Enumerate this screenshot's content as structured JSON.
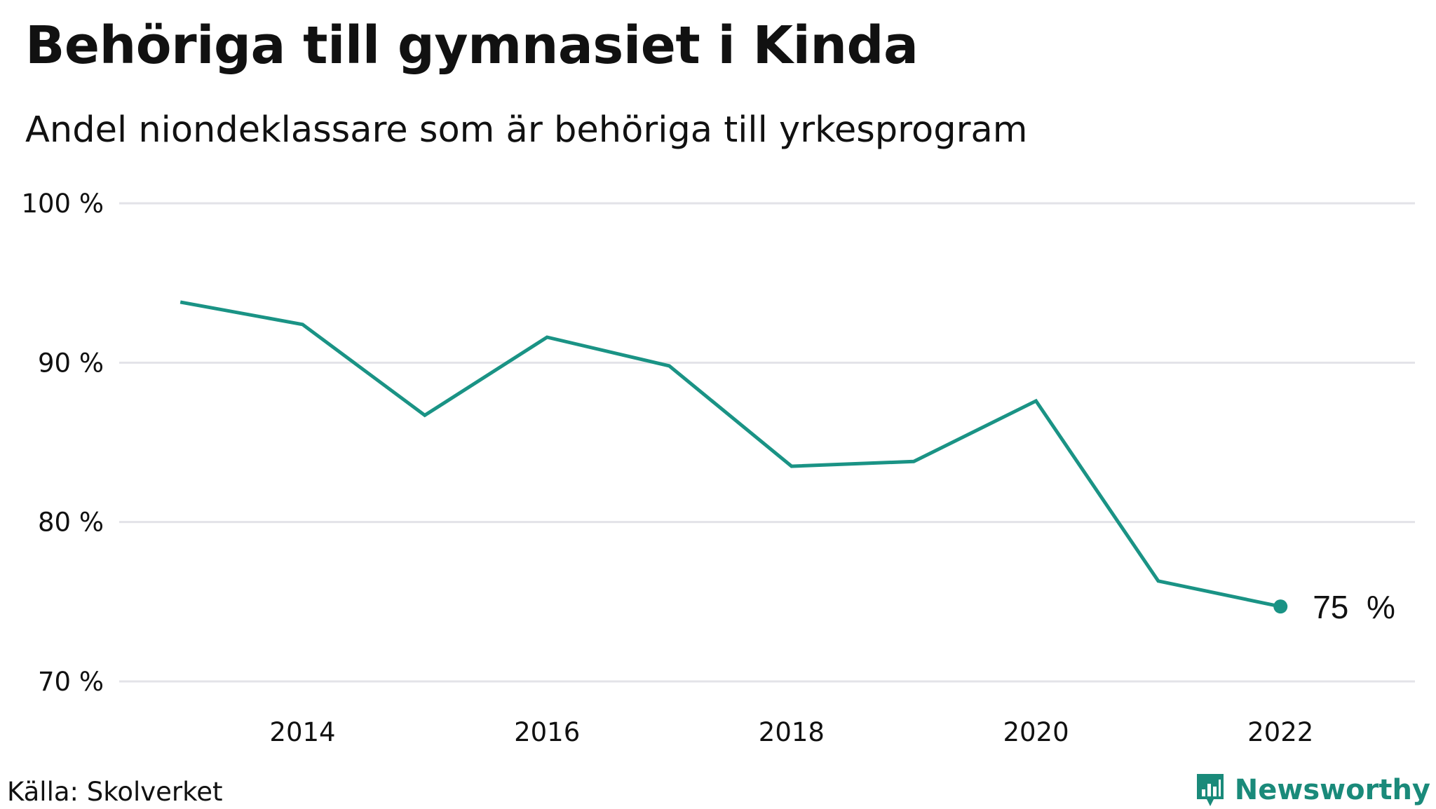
{
  "title": "Behöriga till gymnasiet i Kinda",
  "subtitle": "Andel niondeklassare som är behöriga till yrkesprogram",
  "source": "Källa: Skolverket",
  "brand": "Newsworthy",
  "colors": {
    "line": "#1a9385",
    "grid": "#e3e3e8",
    "text": "#111111",
    "brand": "#1a8a7a"
  },
  "chart_data": {
    "type": "line",
    "title": "Behöriga till gymnasiet i Kinda",
    "subtitle": "Andel niondeklassare som är behöriga till yrkesprogram",
    "xlabel": "",
    "ylabel": "",
    "ylim": [
      70,
      100
    ],
    "xlim": [
      2012.5,
      2023.1
    ],
    "y_ticks": [
      70,
      80,
      90,
      100
    ],
    "y_tick_labels": [
      "70 %",
      "80 %",
      "90 %",
      "100 %"
    ],
    "x_ticks": [
      2014,
      2016,
      2018,
      2020,
      2022
    ],
    "x_tick_labels": [
      "2014",
      "2016",
      "2018",
      "2020",
      "2022"
    ],
    "grid": true,
    "series": [
      {
        "x": [
          2013,
          2014,
          2015,
          2016,
          2017,
          2018,
          2019,
          2020,
          2021,
          2022
        ],
        "values": [
          93.8,
          92.4,
          86.7,
          91.6,
          89.8,
          83.5,
          83.8,
          87.6,
          76.3,
          74.7
        ]
      }
    ],
    "end_label": "75  %"
  }
}
